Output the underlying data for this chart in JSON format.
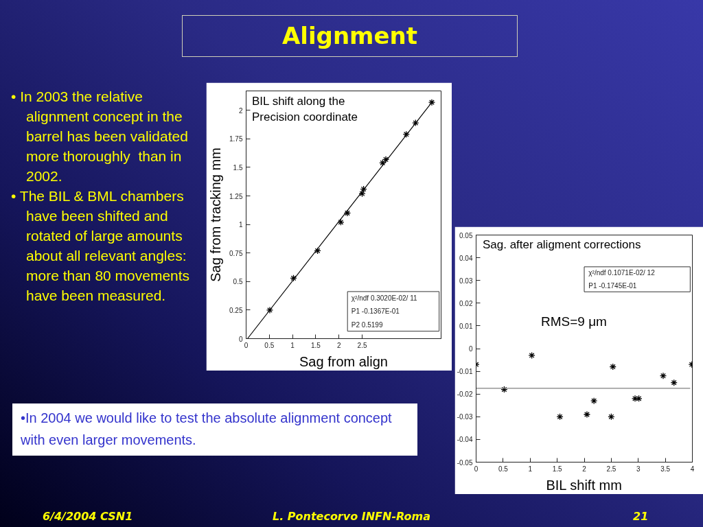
{
  "chart_data": [
    {
      "type": "other",
      "title": "Alignment",
      "annotations": [
        "• In 2003 the relative alignment concept in the barrel has been validated more thoroughly  than in 2002.",
        "• The BIL & BML chambers have been shifted and rotated of large amounts about all relevant angles: more than 80 movements have been measured.",
        "•In 2004 we would like to test the absolute alignment concept with even larger movements.",
        "6/4/2004 CSN1",
        "L. Pontecorvo INFN-Roma",
        "21"
      ]
    },
    {
      "type": "scatter",
      "title": "BIL shift along the Precision coordinate",
      "xlabel": "Sag from align",
      "ylabel": "Sag from tracking mm",
      "xlim": [
        0,
        4.2
      ],
      "xticks": [
        0,
        0.5,
        1,
        1.5,
        2,
        2.5
      ],
      "ylim": [
        0,
        2.17
      ],
      "yticks": [
        0,
        0.25,
        0.5,
        0.75,
        1,
        1.25,
        1.5,
        1.75,
        2
      ],
      "series": [
        {
          "type": "scatter",
          "marker": "cross",
          "color": "#000000",
          "x": [
            0.51,
            1.02,
            1.54,
            2.04,
            2.18,
            2.5,
            2.53,
            2.94,
            3.01,
            3.45,
            3.65,
            4.0
          ],
          "values": [
            0.25,
            0.53,
            0.77,
            1.02,
            1.1,
            1.27,
            1.31,
            1.54,
            1.57,
            1.79,
            1.89,
            2.07
          ]
        },
        {
          "type": "line",
          "color": "#000000",
          "x": [
            0.03,
            4.0
          ],
          "values": [
            0.0,
            2.07
          ]
        }
      ],
      "annotations": [
        "χ²/ndf 0.3020E-02/ 11",
        "P1 -0.1367E-01",
        "P2 0.5199"
      ]
    },
    {
      "type": "scatter",
      "title": "Sag. after aligment corrections",
      "xlabel": "BIL shift mm",
      "xlim": [
        0,
        4
      ],
      "xticks": [
        0,
        0.5,
        1,
        1.5,
        2,
        2.5,
        3,
        3.5,
        4
      ],
      "ylim": [
        -0.05,
        0.05
      ],
      "yticks": [
        -0.05,
        -0.04,
        -0.03,
        -0.02,
        -0.01,
        0,
        0.01,
        0.02,
        0.03,
        0.04,
        0.05
      ],
      "series": [
        {
          "type": "scatter",
          "marker": "cross",
          "color": "#000000",
          "x": [
            0.0,
            0.52,
            1.03,
            1.55,
            2.05,
            2.18,
            2.5,
            2.53,
            2.94,
            3.01,
            3.46,
            3.66,
            3.99
          ],
          "values": [
            -0.007,
            -0.018,
            -0.003,
            -0.03,
            -0.029,
            -0.023,
            -0.03,
            -0.008,
            -0.022,
            -0.022,
            -0.012,
            -0.015,
            -0.007
          ]
        },
        {
          "type": "line",
          "color": "#808080",
          "x": [
            0,
            3.96
          ],
          "values": [
            -0.0175,
            -0.0175
          ]
        }
      ],
      "annotations": [
        "χ²/ndf 0.1071E-02/ 12",
        "P1 -0.1745E-01",
        "RMS=9 μm"
      ]
    }
  ]
}
